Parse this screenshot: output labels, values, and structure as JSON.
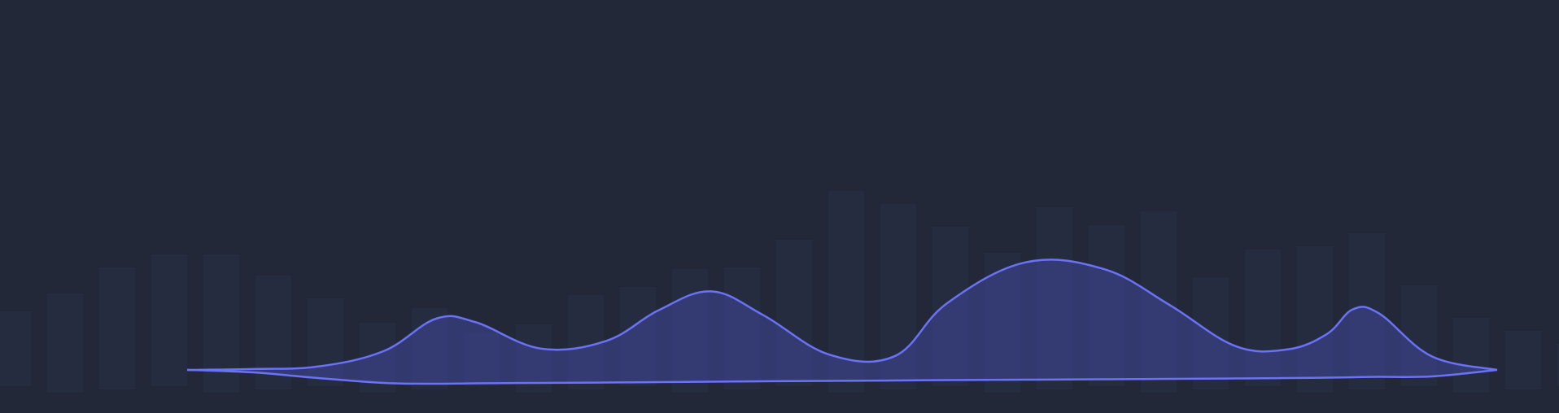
{
  "colors": {
    "background": "#222838",
    "bar": "#262C40",
    "line": "#6B72F5",
    "area_fill": "#3F479A",
    "area_opacity": "0.55"
  },
  "chart_data": {
    "type": "area",
    "description_note": "",
    "background_bars": {
      "values": [
        92,
        122,
        150,
        162,
        170,
        140,
        108,
        86,
        100,
        66,
        84,
        116,
        122,
        152,
        150,
        180,
        248,
        228,
        196,
        172,
        224,
        198,
        223,
        138,
        168,
        180,
        192,
        124,
        92,
        72,
        52
      ],
      "ylim": [
        0,
        260
      ]
    },
    "area_series": {
      "x": [
        0,
        5,
        10,
        15,
        19,
        22,
        27,
        32,
        36,
        40,
        44,
        49,
        54,
        58,
        64,
        70,
        75,
        80,
        84,
        87,
        89,
        91,
        95,
        100
      ],
      "y": [
        0,
        1,
        4,
        22,
        60,
        56,
        25,
        34,
        70,
        92,
        64,
        18,
        16,
        78,
        126,
        118,
        76,
        28,
        24,
        42,
        71,
        66,
        16,
        0
      ],
      "baseline": [
        0,
        -3,
        -10,
        -16,
        -17,
        -16.5,
        -16,
        -15.5,
        -15,
        -14.5,
        -14,
        -13.5,
        -13,
        -12.5,
        -12,
        -11.5,
        -11,
        -10.5,
        -10,
        -9.5,
        -9,
        -8.5,
        -8,
        0
      ],
      "ylim": [
        -20,
        140
      ]
    },
    "grid": false,
    "legend": "none"
  }
}
